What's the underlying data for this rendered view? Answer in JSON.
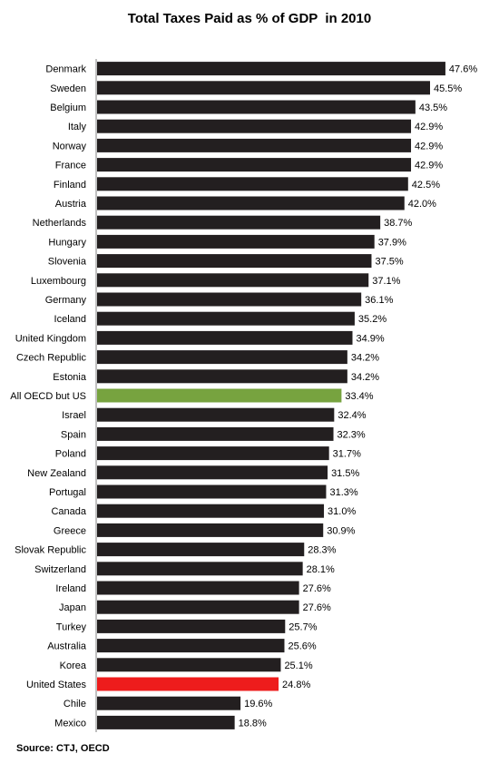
{
  "chart_data": {
    "type": "bar",
    "orientation": "horizontal",
    "title": "Total Taxes Paid as % of GDP  in 2010",
    "xlabel": "",
    "ylabel": "",
    "xlim": [
      0,
      48.6
    ],
    "grid": false,
    "legend": "none",
    "value_suffix": "%",
    "colors": {
      "default": "#231f20",
      "oecd": "#77a33f",
      "us": "#ee1c1c"
    },
    "categories": [
      "Denmark",
      "Sweden",
      "Belgium",
      "Italy",
      "Norway",
      "France",
      "Finland",
      "Austria",
      "Netherlands",
      "Hungary",
      "Slovenia",
      "Luxembourg",
      "Germany",
      "Iceland",
      "United Kingdom",
      "Czech Republic",
      "Estonia",
      "All OECD but US",
      "Israel",
      "Spain",
      "Poland",
      "New Zealand",
      "Portugal",
      "Canada",
      "Greece",
      "Slovak Republic",
      "Switzerland",
      "Ireland",
      "Japan",
      "Turkey",
      "Australia",
      "Korea",
      "United States",
      "Chile",
      "Mexico"
    ],
    "values": [
      47.6,
      45.5,
      43.5,
      42.9,
      42.9,
      42.9,
      42.5,
      42.0,
      38.7,
      37.9,
      37.5,
      37.1,
      36.1,
      35.2,
      34.9,
      34.2,
      34.2,
      33.4,
      32.4,
      32.3,
      31.7,
      31.5,
      31.3,
      31.0,
      30.9,
      28.3,
      28.1,
      27.6,
      27.6,
      25.7,
      25.6,
      25.1,
      24.8,
      19.6,
      18.8
    ],
    "value_labels": [
      "47.6%",
      "45.5%",
      "43.5%",
      "42.9%",
      "42.9%",
      "42.9%",
      "42.5%",
      "42.0%",
      "38.7%",
      "37.9%",
      "37.5%",
      "37.1%",
      "36.1%",
      "35.2%",
      "34.9%",
      "34.2%",
      "34.2%",
      "33.4%",
      "32.4%",
      "32.3%",
      "31.7%",
      "31.5%",
      "31.3%",
      "31.0%",
      "30.9%",
      "28.3%",
      "28.1%",
      "27.6%",
      "27.6%",
      "25.7%",
      "25.6%",
      "25.1%",
      "24.8%",
      "19.6%",
      "18.8%"
    ],
    "highlight": {
      "All OECD but US": "oecd",
      "United States": "us"
    }
  },
  "source": "Source: CTJ, OECD"
}
